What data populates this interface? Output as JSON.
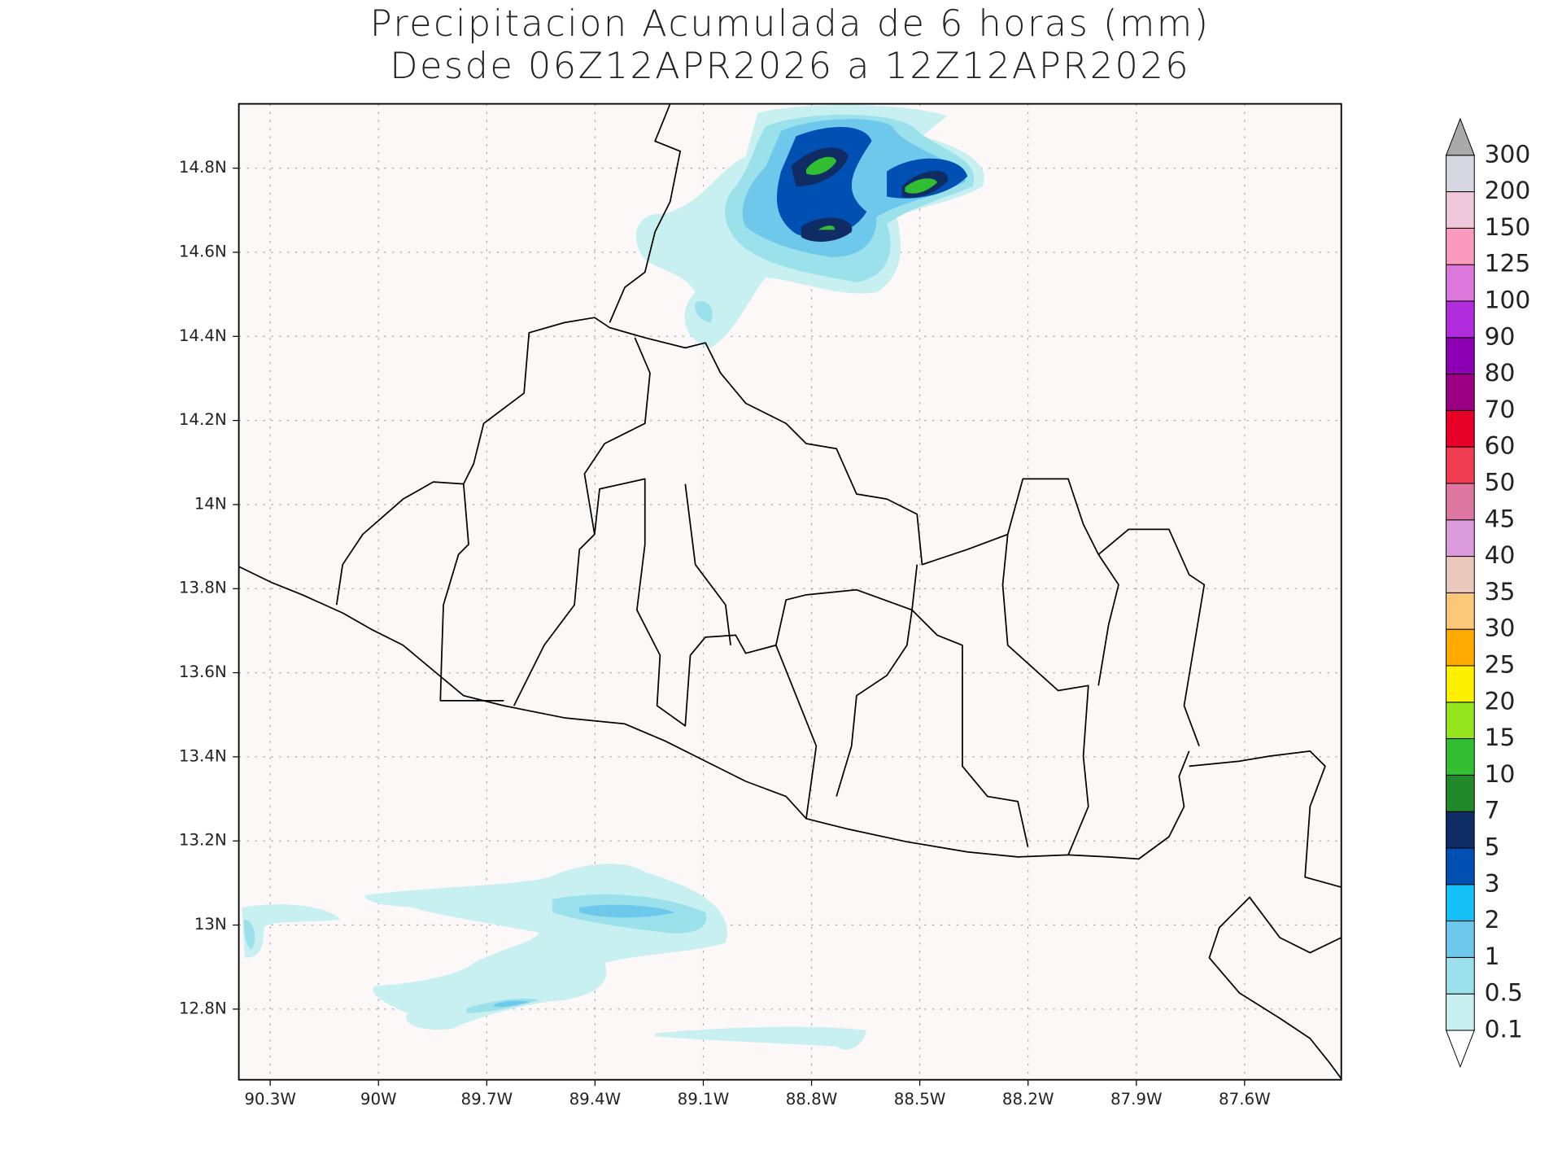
{
  "chart_data": {
    "type": "map",
    "title": "Precipitacion Acumulada de 6 horas (mm)",
    "subtitle": "Desde 06Z12APR2026 a 12Z12APR2026",
    "xlim": [
      -90.387,
      -87.332
    ],
    "ylim": [
      12.632,
      14.953
    ],
    "xticks": [
      {
        "value": -90.3,
        "label": "90.3W"
      },
      {
        "value": -90.0,
        "label": "90W"
      },
      {
        "value": -89.7,
        "label": "89.7W"
      },
      {
        "value": -89.4,
        "label": "89.4W"
      },
      {
        "value": -89.1,
        "label": "89.1W"
      },
      {
        "value": -88.8,
        "label": "88.8W"
      },
      {
        "value": -88.5,
        "label": "88.5W"
      },
      {
        "value": -88.2,
        "label": "88.2W"
      },
      {
        "value": -87.9,
        "label": "87.9W"
      },
      {
        "value": -87.6,
        "label": "87.6W"
      }
    ],
    "yticks": [
      {
        "value": 12.8,
        "label": "12.8N"
      },
      {
        "value": 13.0,
        "label": "13N"
      },
      {
        "value": 13.2,
        "label": "13.2N"
      },
      {
        "value": 13.4,
        "label": "13.4N"
      },
      {
        "value": 13.6,
        "label": "13.6N"
      },
      {
        "value": 13.8,
        "label": "13.8N"
      },
      {
        "value": 14.0,
        "label": "14N"
      },
      {
        "value": 14.2,
        "label": "14.2N"
      },
      {
        "value": 14.4,
        "label": "14.4N"
      },
      {
        "value": 14.6,
        "label": "14.6N"
      },
      {
        "value": 14.8,
        "label": "14.8N"
      }
    ],
    "grid": true,
    "colorbar": {
      "levels": [
        0.1,
        0.5,
        1,
        2,
        3,
        5,
        7,
        10,
        15,
        20,
        25,
        30,
        35,
        40,
        45,
        50,
        60,
        70,
        80,
        90,
        100,
        125,
        150,
        200,
        300
      ],
      "colors": [
        "#c8f0f0",
        "#9be1ec",
        "#6ec8ec",
        "#14c0f8",
        "#0050b4",
        "#0f2d64",
        "#22882a",
        "#32be32",
        "#96e61e",
        "#fff000",
        "#ffaa00",
        "#fac878",
        "#ebc8be",
        "#dc9bdc",
        "#dc78a0",
        "#f03c50",
        "#e60028",
        "#9b0082",
        "#8c00b4",
        "#af2ddc",
        "#dc78dc",
        "#fa9bbe",
        "#f0c8dc",
        "#d7d7e1"
      ],
      "under_color": "#ffffff",
      "over_color": "#aaaaaa"
    }
  }
}
